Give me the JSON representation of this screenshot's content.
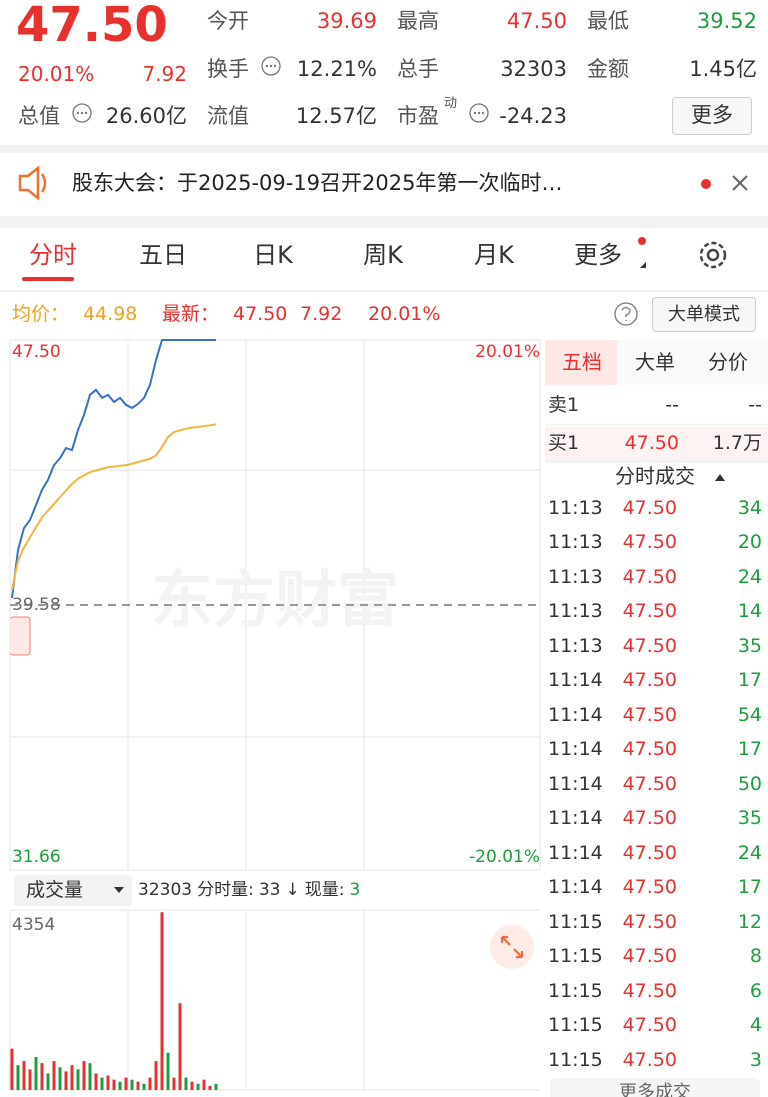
{
  "quote": {
    "price": "47.50",
    "change_pct": "20.01%",
    "change": "7.92",
    "stats": [
      {
        "label": "今开",
        "value": "39.69"
      },
      {
        "label": "最高",
        "value": "47.50"
      },
      {
        "label": "最低",
        "value": "39.52"
      },
      {
        "label": "换手",
        "value": "12.21%"
      },
      {
        "label": "总手",
        "value": "32303"
      },
      {
        "label": "金额",
        "value": "1.45亿"
      },
      {
        "label": "总值",
        "value": "26.60亿"
      },
      {
        "label": "流值",
        "value": "12.57亿"
      },
      {
        "label": "市盈",
        "superscript": "动",
        "value": "-24.23"
      }
    ],
    "more_button": "更多"
  },
  "notice": {
    "text": "股东大会：于2025-09-19召开2025年第一次临时…"
  },
  "tabs": [
    "分时",
    "五日",
    "日K",
    "周K",
    "月K",
    "更多"
  ],
  "summary": {
    "avg_label": "均价：",
    "avg": "44.98",
    "latest_label": "最新：",
    "latest": "47.50",
    "change": "7.92",
    "change_pct": "20.01%",
    "mode_button": "大单模式"
  },
  "chart_data": [
    {
      "type": "line",
      "watermark": "东方财富",
      "ylim": [
        31.66,
        47.5
      ],
      "yticks": [
        {
          "value": 47.5,
          "label": "47.50"
        },
        {
          "value": 39.58,
          "label": "39.58"
        },
        {
          "value": 31.66,
          "label": "31.66"
        }
      ],
      "y2lim": [
        -20.01,
        20.01
      ],
      "y2ticks": [
        {
          "value": 20.01,
          "label": "20.01%"
        },
        {
          "value": -20.01,
          "label": "-20.01%"
        }
      ],
      "series": [
        {
          "color": "#3b6fc6",
          "values": [
            39.79,
            41.22,
            41.88,
            42.12,
            42.57,
            43.02,
            43.32,
            43.76,
            43.97,
            44.27,
            44.21,
            44.81,
            45.26,
            45.86,
            46.01,
            45.77,
            45.86,
            45.65,
            45.77,
            45.56,
            45.47,
            45.59,
            45.77,
            46.16,
            46.9,
            47.5,
            47.5,
            47.5,
            47.5,
            47.5,
            47.5,
            47.5,
            47.5,
            47.5,
            47.5
          ]
        },
        {
          "color": "#f2b63c",
          "values": [
            40.03,
            40.9,
            41.3,
            41.6,
            41.9,
            42.2,
            42.4,
            42.6,
            42.8,
            43.0,
            43.2,
            43.35,
            43.45,
            43.55,
            43.6,
            43.65,
            43.7,
            43.72,
            43.74,
            43.76,
            43.8,
            43.85,
            43.9,
            43.95,
            44.05,
            44.3,
            44.6,
            44.75,
            44.8,
            44.85,
            44.88,
            44.9,
            44.93,
            44.95,
            44.98
          ]
        }
      ]
    },
    {
      "type": "bar",
      "selector": "成交量",
      "total": "32303",
      "minute_label": "分时量:",
      "minute": "33",
      "arrow": "↓",
      "current_label": "现量:",
      "current": "3",
      "ylim": [
        0,
        4354
      ],
      "yticks": [
        4354
      ],
      "up_color": "#e8312f",
      "down_color": "#1b9e3e",
      "values": [
        1000,
        600,
        700,
        500,
        800,
        650,
        400,
        700,
        550,
        450,
        600,
        500,
        700,
        650,
        400,
        300,
        350,
        250,
        200,
        300,
        250,
        200,
        150,
        300,
        700,
        4300,
        900,
        300,
        2100,
        300,
        200,
        150,
        250,
        100,
        150
      ],
      "directions": [
        "up",
        "down",
        "up",
        "up",
        "down",
        "up",
        "down",
        "up",
        "down",
        "up",
        "up",
        "down",
        "up",
        "down",
        "up",
        "down",
        "up",
        "up",
        "down",
        "up",
        "down",
        "up",
        "down",
        "up",
        "up",
        "up",
        "down",
        "up",
        "up",
        "down",
        "up",
        "down",
        "up",
        "up",
        "down"
      ]
    }
  ],
  "order_book": {
    "tabs": [
      "五档",
      "大单",
      "分价"
    ],
    "asks": [
      {
        "label": "卖1",
        "price": "--",
        "volume": "--"
      }
    ],
    "bids": [
      {
        "label": "买1",
        "price": "47.50",
        "volume": "1.7万"
      }
    ]
  },
  "trades": {
    "title": "分时成交",
    "rows": [
      [
        "11:13",
        "47.50",
        "34"
      ],
      [
        "11:13",
        "47.50",
        "20"
      ],
      [
        "11:13",
        "47.50",
        "24"
      ],
      [
        "11:13",
        "47.50",
        "14"
      ],
      [
        "11:13",
        "47.50",
        "35"
      ],
      [
        "11:14",
        "47.50",
        "17"
      ],
      [
        "11:14",
        "47.50",
        "54"
      ],
      [
        "11:14",
        "47.50",
        "17"
      ],
      [
        "11:14",
        "47.50",
        "50"
      ],
      [
        "11:14",
        "47.50",
        "35"
      ],
      [
        "11:14",
        "47.50",
        "24"
      ],
      [
        "11:14",
        "47.50",
        "17"
      ],
      [
        "11:15",
        "47.50",
        "12"
      ],
      [
        "11:15",
        "47.50",
        "8"
      ],
      [
        "11:15",
        "47.50",
        "6"
      ],
      [
        "11:15",
        "47.50",
        "4"
      ],
      [
        "11:15",
        "47.50",
        "3"
      ]
    ],
    "more": "更多成交"
  }
}
